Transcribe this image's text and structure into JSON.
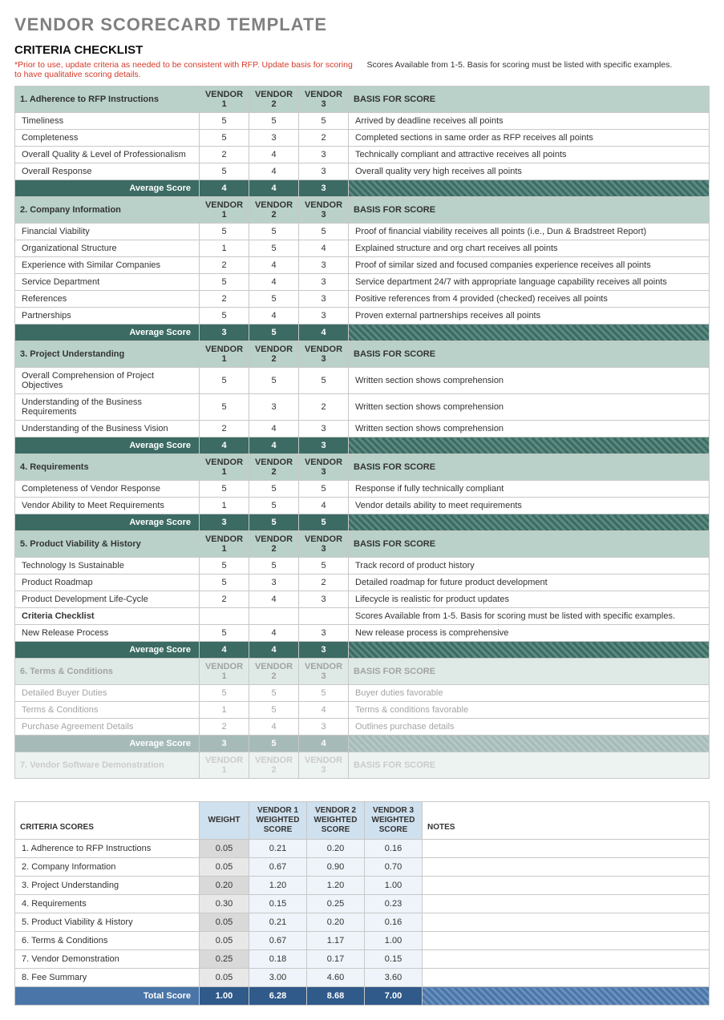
{
  "titles": {
    "main": "VENDOR SCORECARD TEMPLATE",
    "checklist": "CRITERIA CHECKLIST",
    "scores": "CRITERIA SCORES"
  },
  "notes": {
    "red": "*Prior to use, update criteria as needed to be consistent with RFP. Update basis for scoring to have qualitative scoring details.",
    "black": "Scores Available from 1-5. Basis for scoring must be listed with specific examples."
  },
  "headers": {
    "v1": "VENDOR 1",
    "v2": "VENDOR 2",
    "v3": "VENDOR 3",
    "basis": "BASIS FOR SCORE",
    "avg": "Average Score"
  },
  "sections": [
    {
      "title": "1. Adherence to RFP Instructions",
      "rows": [
        {
          "label": "Timeliness",
          "v": [
            5,
            5,
            5
          ],
          "basis": "Arrived by deadline receives all points"
        },
        {
          "label": "Completeness",
          "v": [
            5,
            3,
            2
          ],
          "basis": "Completed sections in same order as RFP receives all points"
        },
        {
          "label": "Overall Quality & Level of Professionalism",
          "v": [
            2,
            4,
            3
          ],
          "basis": "Technically compliant and attractive receives all points"
        },
        {
          "label": "Overall Response",
          "v": [
            5,
            4,
            3
          ],
          "basis": "Overall quality very high receives all points"
        }
      ],
      "avg": [
        4,
        4,
        3
      ]
    },
    {
      "title": "2. Company Information",
      "rows": [
        {
          "label": "Financial Viability",
          "v": [
            5,
            5,
            5
          ],
          "basis": "Proof of financial viability receives all points (i.e., Dun & Bradstreet Report)"
        },
        {
          "label": "Organizational Structure",
          "v": [
            1,
            5,
            4
          ],
          "basis": "Explained structure and org chart receives all points"
        },
        {
          "label": "Experience with Similar Companies",
          "v": [
            2,
            4,
            3
          ],
          "basis": "Proof of similar sized and focused companies experience receives all points"
        },
        {
          "label": "Service Department",
          "v": [
            5,
            4,
            3
          ],
          "basis": "Service department 24/7 with appropriate language capability receives all points"
        },
        {
          "label": "References",
          "v": [
            2,
            5,
            3
          ],
          "basis": "Positive references from 4 provided (checked) receives all points"
        },
        {
          "label": "Partnerships",
          "v": [
            5,
            4,
            3
          ],
          "basis": "Proven external partnerships receives all points"
        }
      ],
      "avg": [
        3,
        5,
        4
      ]
    },
    {
      "title": "3. Project Understanding",
      "rows": [
        {
          "label": "Overall Comprehension of Project Objectives",
          "v": [
            5,
            5,
            5
          ],
          "basis": "Written section shows comprehension"
        },
        {
          "label": "Understanding of the Business Requirements",
          "v": [
            5,
            3,
            2
          ],
          "basis": "Written section shows comprehension"
        },
        {
          "label": "Understanding of the Business Vision",
          "v": [
            2,
            4,
            3
          ],
          "basis": "Written section shows comprehension"
        }
      ],
      "avg": [
        4,
        4,
        3
      ]
    },
    {
      "title": "4. Requirements",
      "rows": [
        {
          "label": "Completeness of Vendor Response",
          "v": [
            5,
            5,
            5
          ],
          "basis": "Response if fully technically compliant"
        },
        {
          "label": "Vendor Ability to Meet Requirements",
          "v": [
            1,
            5,
            4
          ],
          "basis": "Vendor details ability to meet requirements"
        }
      ],
      "avg": [
        3,
        5,
        5
      ]
    },
    {
      "title": "5. Product Viability & History",
      "rows": [
        {
          "label": "Technology Is Sustainable",
          "v": [
            5,
            5,
            5
          ],
          "basis": "Track record of product history"
        },
        {
          "label": "Product Roadmap",
          "v": [
            5,
            3,
            2
          ],
          "basis": "Detailed roadmap for future product development"
        },
        {
          "label": "Product Development Life-Cycle",
          "v": [
            2,
            4,
            3
          ],
          "basis": "Lifecycle is realistic for product updates"
        },
        {
          "label": "Criteria Checklist",
          "v": [
            "",
            "",
            ""
          ],
          "basis": "Scores Available from 1-5. Basis for scoring must be listed with specific examples.",
          "bold": true
        },
        {
          "label": "New Release Process",
          "v": [
            5,
            4,
            3
          ],
          "basis": "New release process is comprehensive"
        }
      ],
      "avg": [
        4,
        4,
        3
      ]
    },
    {
      "title": "6. Terms & Conditions",
      "fade": true,
      "rows": [
        {
          "label": "Detailed Buyer Duties",
          "v": [
            5,
            5,
            5
          ],
          "basis": "Buyer duties favorable"
        },
        {
          "label": "Terms & Conditions",
          "v": [
            1,
            5,
            4
          ],
          "basis": "Terms & conditions favorable"
        },
        {
          "label": "Purchase Agreement Details",
          "v": [
            2,
            4,
            3
          ],
          "basis": "Outlines purchase details"
        }
      ],
      "avg": [
        3,
        5,
        4
      ]
    },
    {
      "title": "7. Vendor Software Demonstration",
      "fade2": true,
      "rows": [],
      "headerOnly": true
    }
  ],
  "scoresTable": {
    "headers": {
      "weight": "WEIGHT",
      "v1": "VENDOR 1 WEIGHTED SCORE",
      "v2": "VENDOR 2 WEIGHTED SCORE",
      "v3": "VENDOR 3 WEIGHTED SCORE",
      "notes": "NOTES"
    },
    "rows": [
      {
        "label": "1. Adherence to RFP Instructions",
        "weight": "0.05",
        "v": [
          "0.21",
          "0.20",
          "0.16"
        ]
      },
      {
        "label": "2. Company Information",
        "weight": "0.05",
        "v": [
          "0.67",
          "0.90",
          "0.70"
        ]
      },
      {
        "label": "3. Project Understanding",
        "weight": "0.20",
        "v": [
          "1.20",
          "1.20",
          "1.00"
        ]
      },
      {
        "label": "4. Requirements",
        "weight": "0.30",
        "v": [
          "0.15",
          "0.25",
          "0.23"
        ]
      },
      {
        "label": "5. Product Viability & History",
        "weight": "0.05",
        "v": [
          "0.21",
          "0.20",
          "0.16"
        ]
      },
      {
        "label": "6. Terms & Conditions",
        "weight": "0.05",
        "v": [
          "0.67",
          "1.17",
          "1.00"
        ]
      },
      {
        "label": "7. Vendor Demonstration",
        "weight": "0.25",
        "v": [
          "0.18",
          "0.17",
          "0.15"
        ]
      },
      {
        "label": "8. Fee Summary",
        "weight": "0.05",
        "v": [
          "3.00",
          "4.60",
          "3.60"
        ]
      }
    ],
    "total": {
      "label": "Total Score",
      "weight": "1.00",
      "v": [
        "6.28",
        "8.68",
        "7.00"
      ]
    }
  }
}
